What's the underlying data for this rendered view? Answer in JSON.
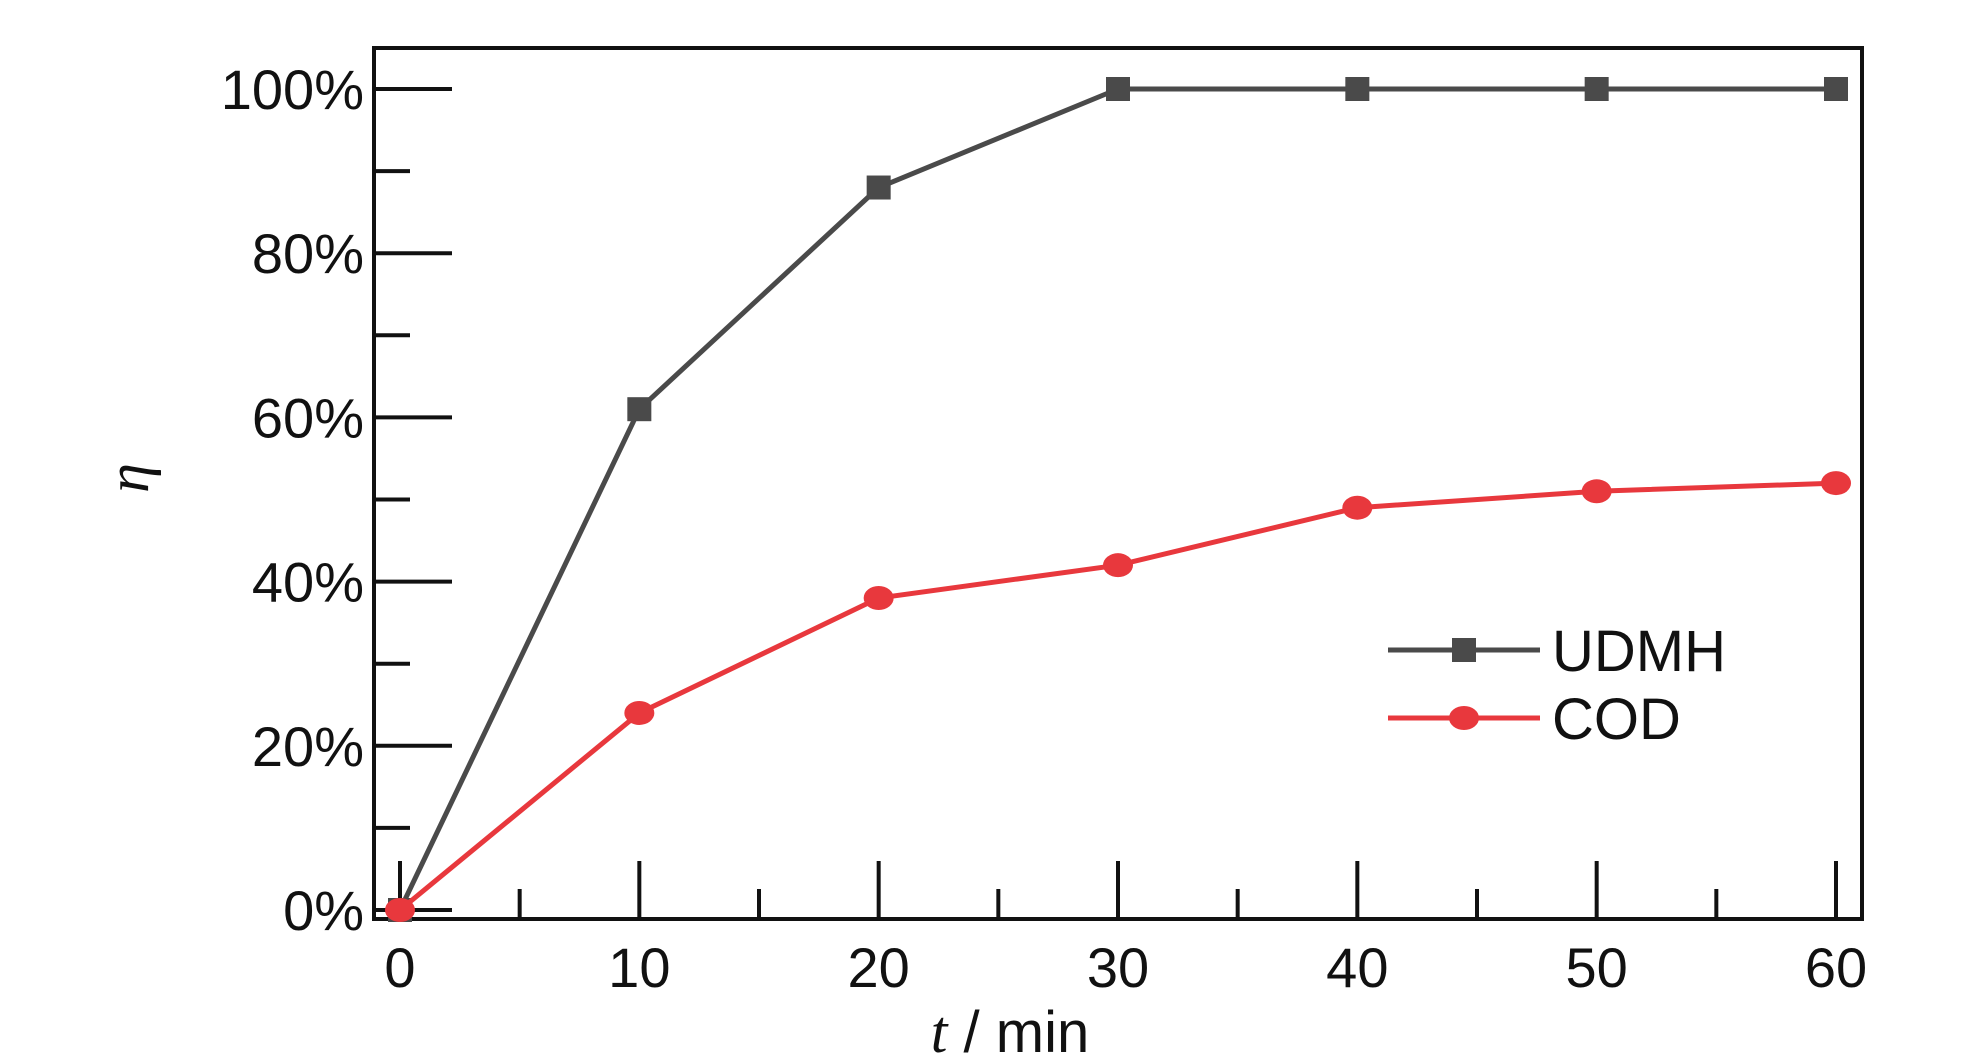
{
  "chart_data": {
    "type": "line",
    "x": [
      0,
      10,
      20,
      30,
      40,
      50,
      60
    ],
    "xlabel_symbol": "t",
    "xlabel_unit": " / min",
    "ylabel": "η",
    "xlim": [
      0,
      60
    ],
    "ylim": [
      0,
      100
    ],
    "x_ticks": [
      "0",
      "10",
      "20",
      "30",
      "40",
      "50",
      "60"
    ],
    "y_ticks": [
      "0%",
      "20%",
      "40%",
      "60%",
      "80%",
      "100%"
    ],
    "y_tick_values": [
      0,
      20,
      40,
      60,
      80,
      100
    ],
    "grid": false,
    "legend_position": "right",
    "series": [
      {
        "name": "UDMH",
        "values": [
          0,
          61,
          88,
          100,
          100,
          100,
          100
        ],
        "color": "#4a4a4a",
        "marker": "square"
      },
      {
        "name": "COD",
        "values": [
          0,
          24,
          38,
          42,
          49,
          51,
          52
        ],
        "color": "#e8383d",
        "marker": "circle"
      }
    ]
  }
}
